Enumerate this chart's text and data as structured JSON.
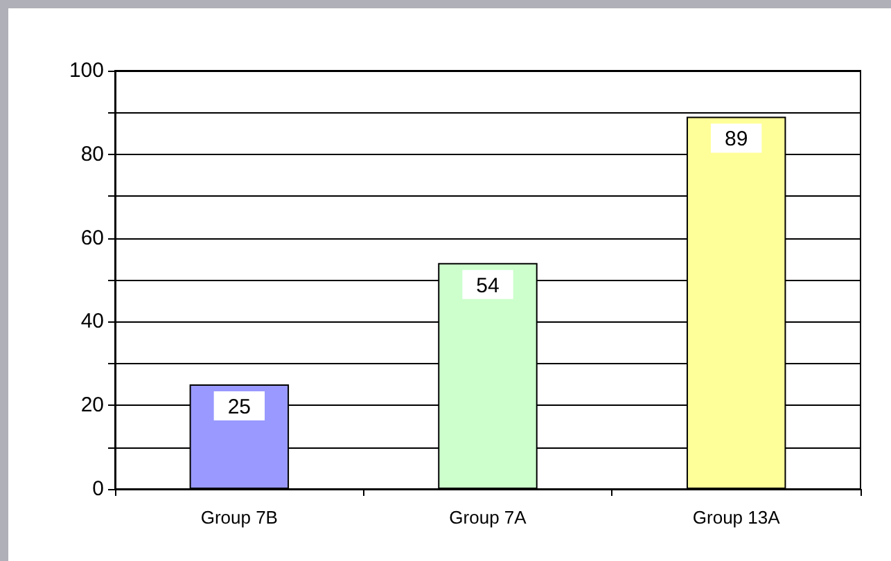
{
  "chart_data": {
    "type": "bar",
    "categories": [
      "Group 7B",
      "Group 7A",
      "Group 13A"
    ],
    "values": [
      25,
      54,
      89
    ],
    "colors": [
      "#9999ff",
      "#ccffcc",
      "#ffff99"
    ],
    "ylim": [
      0,
      100
    ],
    "yticks": [
      0,
      {
        "value": 10,
        "label": null
      },
      20,
      {
        "value": 30,
        "label": null
      },
      40,
      {
        "value": 50,
        "label": null
      },
      60,
      {
        "value": 70,
        "label": null
      },
      80,
      {
        "value": 90,
        "label": null
      },
      100
    ],
    "grid": "y",
    "data_labels": true
  }
}
